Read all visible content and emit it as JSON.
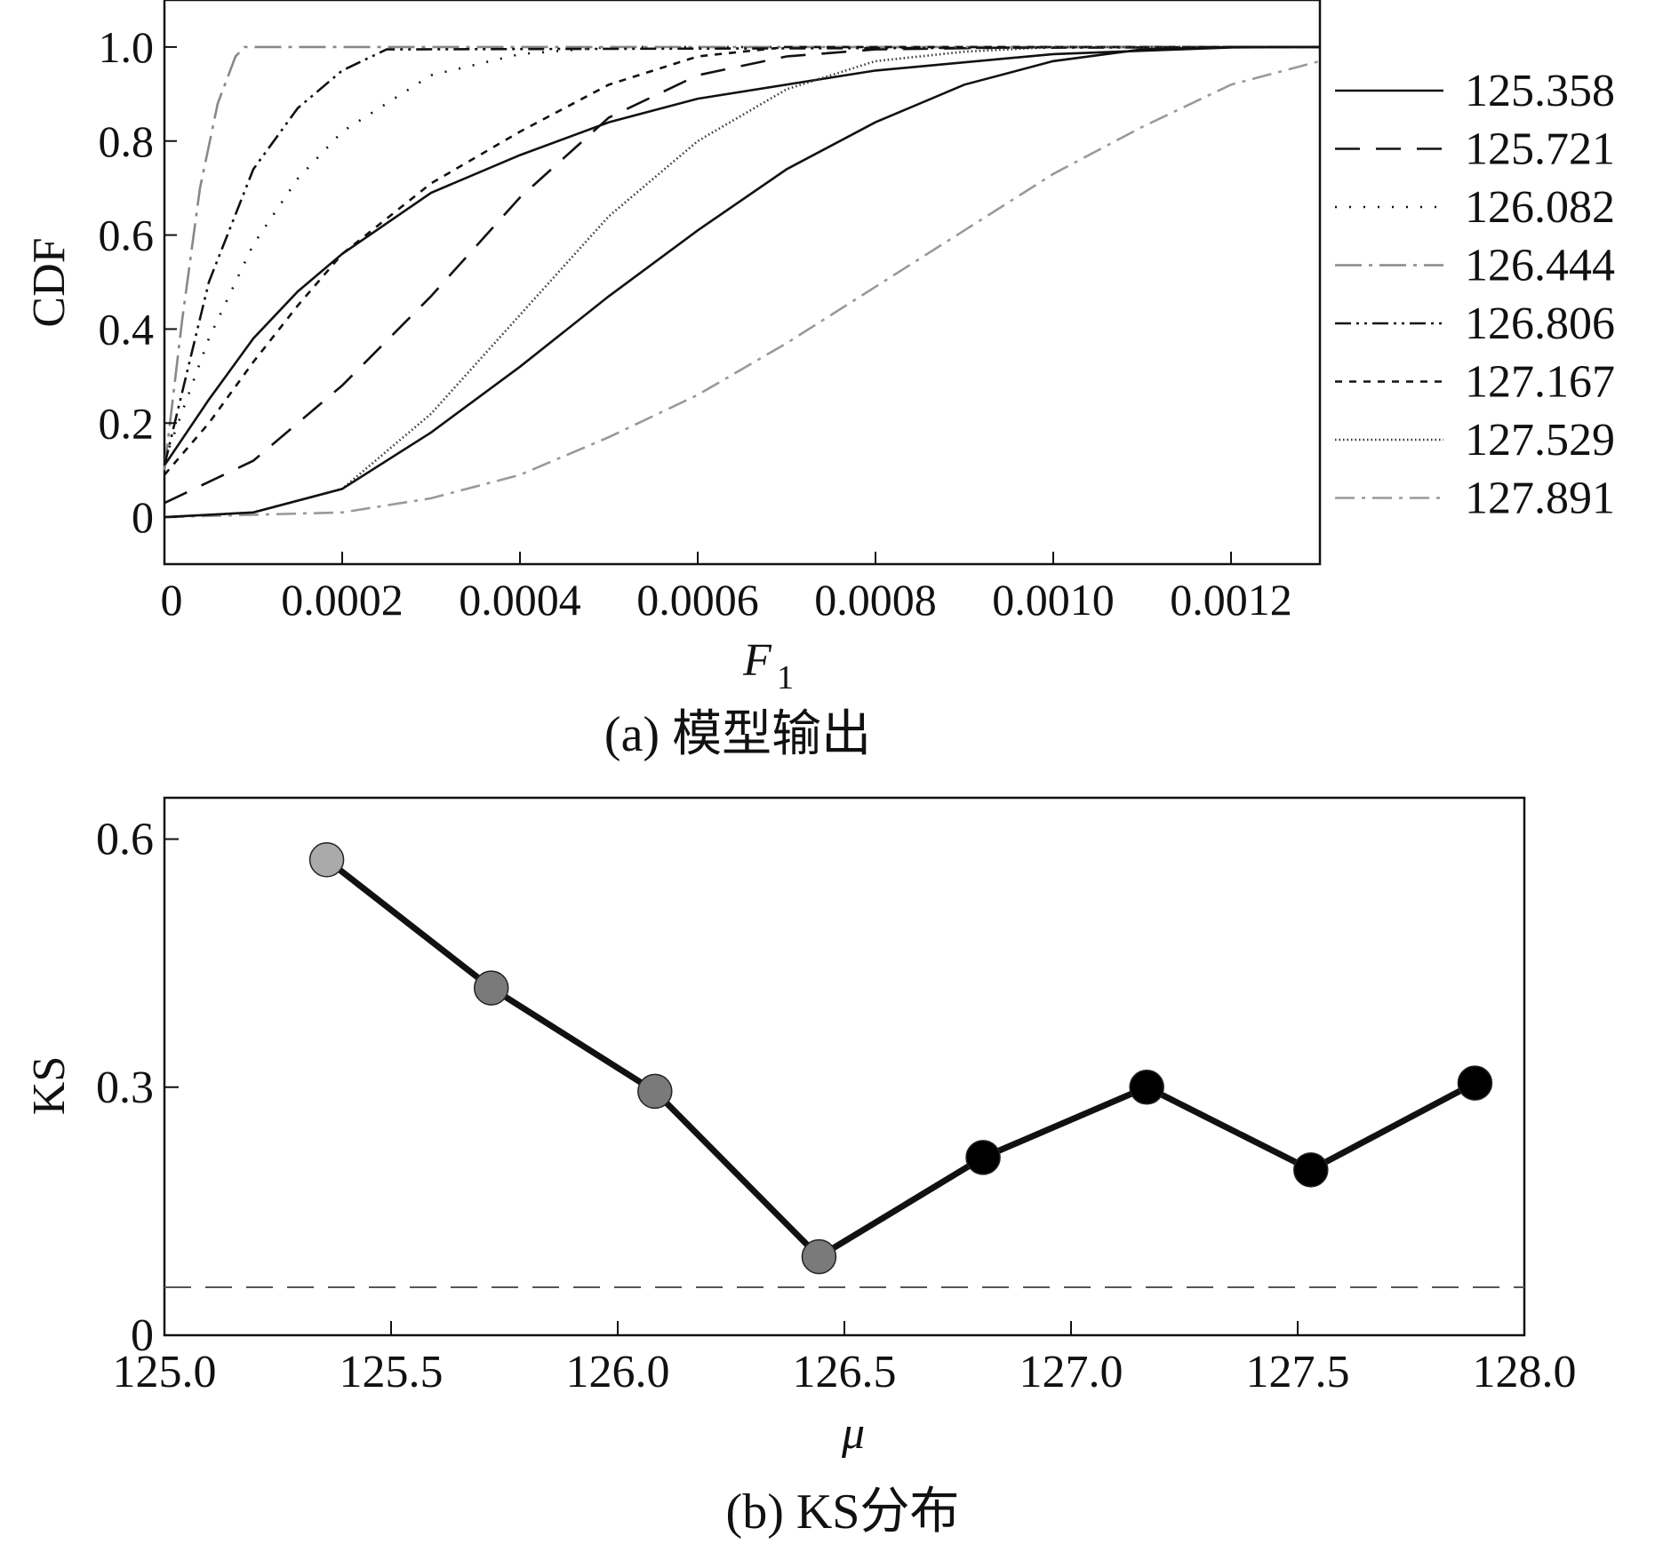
{
  "chart_data": [
    {
      "type": "line",
      "xlabel": "F",
      "xlabel_subscript": "1",
      "ylabel": "CDF",
      "caption": "(a) 模型输出",
      "xlim": [
        0,
        0.0013
      ],
      "ylim": [
        -0.1,
        1.1
      ],
      "x_ticks": [
        0,
        0.0002,
        0.0004,
        0.0006,
        0.0008,
        0.001,
        0.0012
      ],
      "x_tick_labels": [
        "0",
        "0.0002",
        "0.0004",
        "0.0006",
        "0.0008",
        "0.0010",
        "0.0012"
      ],
      "y_ticks": [
        0,
        0.2,
        0.4,
        0.6,
        0.8,
        1.0
      ],
      "y_tick_labels": [
        "0",
        "0.2",
        "0.4",
        "0.6",
        "0.8",
        "1.0"
      ],
      "legend_position": "right",
      "series": [
        {
          "name": "125.358",
          "color": "#111111",
          "dash": "none",
          "x": [
            0,
            5e-05,
            0.0001,
            0.00015,
            0.0002,
            0.0003,
            0.0004,
            0.0005,
            0.0006,
            0.0008,
            0.001,
            0.0012,
            0.0013
          ],
          "y": [
            0.11,
            0.25,
            0.38,
            0.48,
            0.56,
            0.69,
            0.77,
            0.84,
            0.89,
            0.95,
            0.985,
            0.999,
            1.0
          ]
        },
        {
          "name": "125.721",
          "color": "#111111",
          "dash": "28 18",
          "x": [
            0,
            0.0001,
            0.0002,
            0.0003,
            0.0004,
            0.0005,
            0.0006,
            0.0007,
            0.0008,
            0.001,
            0.0013
          ],
          "y": [
            0.03,
            0.12,
            0.28,
            0.47,
            0.68,
            0.85,
            0.94,
            0.98,
            0.995,
            1.0,
            1.0
          ]
        },
        {
          "name": "126.082",
          "color": "#111111",
          "dash": "2 14",
          "x": [
            0,
            5e-05,
            0.0001,
            0.00015,
            0.0002,
            0.0003,
            0.0004,
            0.0005,
            0.0013
          ],
          "y": [
            0.12,
            0.38,
            0.58,
            0.72,
            0.82,
            0.94,
            0.985,
            1.0,
            1.0
          ]
        },
        {
          "name": "126.444",
          "color": "#888888",
          "dash": "30 8 4 8",
          "x": [
            0,
            2e-05,
            4e-05,
            6e-05,
            8e-05,
            9e-05,
            0.0013
          ],
          "y": [
            0.1,
            0.42,
            0.7,
            0.88,
            0.98,
            1.0,
            1.0
          ]
        },
        {
          "name": "126.806",
          "color": "#111111",
          "dash": "18 6 3 6 3 6",
          "x": [
            0,
            5e-05,
            0.0001,
            0.00015,
            0.0002,
            0.00025,
            0.0013
          ],
          "y": [
            0.11,
            0.5,
            0.74,
            0.87,
            0.95,
            0.995,
            1.0
          ]
        },
        {
          "name": "127.167",
          "color": "#111111",
          "dash": "8 8",
          "x": [
            0,
            5e-05,
            0.0001,
            0.00015,
            0.0002,
            0.0003,
            0.0004,
            0.0005,
            0.0006,
            0.0007,
            0.0013
          ],
          "y": [
            0.09,
            0.2,
            0.33,
            0.45,
            0.56,
            0.71,
            0.82,
            0.92,
            0.98,
            1.0,
            1.0
          ]
        },
        {
          "name": "127.529",
          "color": "#333333",
          "dash": "1.5 3",
          "x": [
            0,
            0.0001,
            0.0002,
            0.0003,
            0.0004,
            0.0005,
            0.0006,
            0.0007,
            0.0008,
            0.0009,
            0.001,
            0.0011,
            0.0013
          ],
          "y": [
            0.0,
            0.01,
            0.06,
            0.22,
            0.43,
            0.64,
            0.8,
            0.91,
            0.97,
            0.99,
            1.0,
            1.0,
            1.0
          ]
        },
        {
          "name": "127.891",
          "color": "#999999",
          "dash": "22 8 4 8",
          "x": [
            0,
            0.0002,
            0.0003,
            0.0004,
            0.0005,
            0.0006,
            0.0007,
            0.0008,
            0.0009,
            0.001,
            0.0011,
            0.0012,
            0.0013
          ],
          "y": [
            0.0,
            0.01,
            0.04,
            0.09,
            0.17,
            0.26,
            0.37,
            0.49,
            0.61,
            0.73,
            0.83,
            0.92,
            0.97
          ]
        },
        {
          "name": "",
          "color": "#111111",
          "dash": "none",
          "x": [
            0,
            0.0001,
            0.0002,
            0.0003,
            0.0004,
            0.0005,
            0.0006,
            0.0007,
            0.0008,
            0.0009,
            0.001,
            0.0011,
            0.0012,
            0.0013
          ],
          "y": [
            0.0,
            0.01,
            0.06,
            0.18,
            0.32,
            0.47,
            0.61,
            0.74,
            0.84,
            0.92,
            0.97,
            0.995,
            1.0,
            1.0
          ]
        }
      ]
    },
    {
      "type": "line",
      "xlabel": "μ",
      "ylabel": "KS",
      "caption": "(b) KS分布",
      "xlim": [
        125.0,
        128.0
      ],
      "ylim": [
        0,
        0.65
      ],
      "x_ticks": [
        125.0,
        125.5,
        126.0,
        126.5,
        127.0,
        127.5,
        128.0
      ],
      "x_tick_labels": [
        "125.0",
        "125.5",
        "126.0",
        "126.5",
        "127.0",
        "127.5",
        "128.0"
      ],
      "y_ticks": [
        0,
        0.3,
        0.6
      ],
      "y_tick_labels": [
        "0",
        "0.3",
        "0.6"
      ],
      "threshold": 0.058,
      "points": {
        "x": [
          125.358,
          125.721,
          126.082,
          126.444,
          126.806,
          127.167,
          127.529,
          127.891
        ],
        "y": [
          0.575,
          0.42,
          0.295,
          0.095,
          0.215,
          0.3,
          0.2,
          0.305
        ],
        "colors": [
          "#aaaaaa",
          "#7a7a7a",
          "#7a7a7a",
          "#7a7a7a",
          "#000000",
          "#000000",
          "#000000",
          "#000000"
        ]
      }
    }
  ]
}
